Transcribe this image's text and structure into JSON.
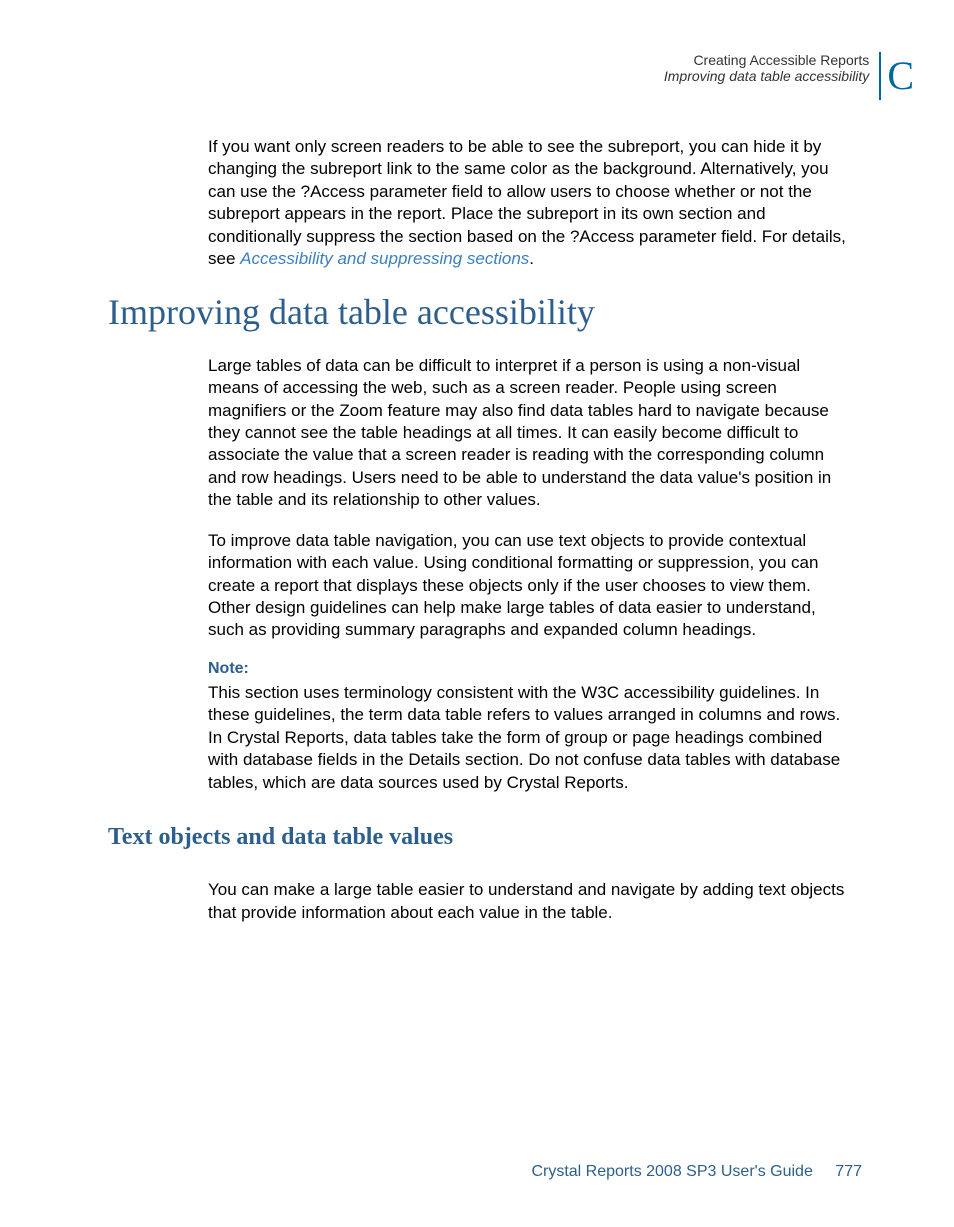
{
  "header": {
    "chapter_title": "Creating Accessible Reports",
    "section_title": "Improving data table accessibility",
    "appendix_letter": "C"
  },
  "intro_para_part1": "If you want only screen readers to be able to see the subreport, you can hide it by changing the subreport link to the same color as the background. Alternatively, you can use the ?Access parameter field to allow users to choose whether or not the subreport appears in the report. Place the subreport in its own section and conditionally suppress the section based on the ?Access parameter field. For details, see ",
  "intro_link_text": "Accessibility and suppressing sections",
  "intro_para_tail": ".",
  "h1_text": "Improving data table accessibility",
  "para1": "Large tables of data can be difficult to interpret if a person is using a non-visual means of accessing the web, such as a screen reader. People using screen magnifiers or the Zoom feature may also find data tables hard to navigate because they cannot see the table headings at all times. It can easily become difficult to associate the value that a screen reader is reading with the corresponding column and row headings. Users need to be able to understand the data value's position in the table and its relationship to other values.",
  "para2": "To improve data table navigation, you can use text objects to provide contextual information with each value. Using conditional formatting or suppression, you can create a report that displays these objects only if the user chooses to view them. Other design guidelines can help make large tables of data easier to understand, such as providing summary paragraphs and expanded column headings.",
  "note_label": "Note:",
  "note_body": "This section uses terminology consistent with the W3C accessibility guidelines. In these guidelines, the term data table refers to values arranged in columns and rows. In Crystal Reports, data tables take the form of group or page headings combined with database fields in the Details section. Do not confuse data tables with database tables, which are data sources used by Crystal Reports.",
  "h2_text": "Text objects and data table values",
  "para3": "You can make a large table easier to understand and navigate by adding text objects that provide information about each value in the table.",
  "footer": {
    "guide_title": "Crystal Reports 2008 SP3 User's Guide",
    "page_number": "777"
  },
  "colors": {
    "heading_blue": "#2c5f8d",
    "link_blue": "#3b7fbf",
    "accent_blue": "#0066a1",
    "body_text": "#000000",
    "header_text": "#333333",
    "background": "#ffffff"
  },
  "typography": {
    "body_font": "Arial",
    "heading_font": "Palatino Linotype",
    "body_size_pt": 13,
    "h1_size_pt": 27,
    "h2_size_pt": 18,
    "header_size_pt": 10
  }
}
